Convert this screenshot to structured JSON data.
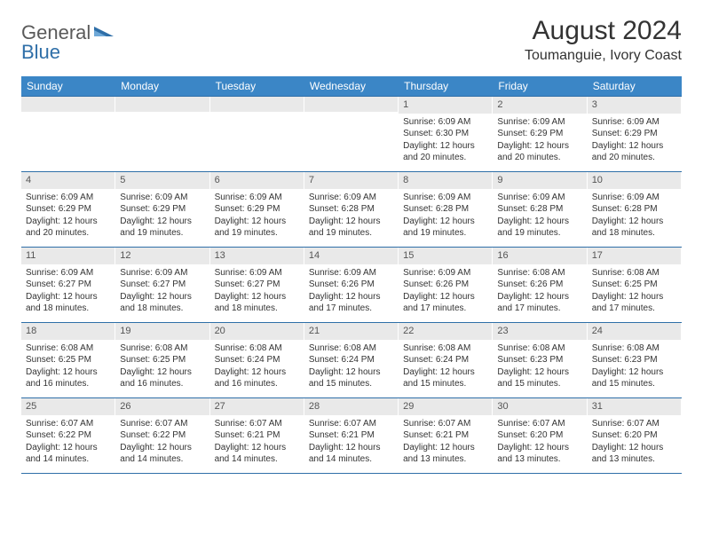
{
  "brand": {
    "part1": "General",
    "part2": "Blue"
  },
  "title": "August 2024",
  "location": "Toumanguie, Ivory Coast",
  "colors": {
    "header_bg": "#3b86c6",
    "divider": "#2f6fa8",
    "daynum_bg": "#e9e9e9",
    "text": "#333333",
    "logo_gray": "#5a5a5a",
    "logo_blue": "#2f6fa8",
    "background": "#ffffff"
  },
  "weekdays": [
    "Sunday",
    "Monday",
    "Tuesday",
    "Wednesday",
    "Thursday",
    "Friday",
    "Saturday"
  ],
  "weeks": [
    [
      {
        "day": "",
        "sunrise": "",
        "sunset": "",
        "daylight1": "",
        "daylight2": ""
      },
      {
        "day": "",
        "sunrise": "",
        "sunset": "",
        "daylight1": "",
        "daylight2": ""
      },
      {
        "day": "",
        "sunrise": "",
        "sunset": "",
        "daylight1": "",
        "daylight2": ""
      },
      {
        "day": "",
        "sunrise": "",
        "sunset": "",
        "daylight1": "",
        "daylight2": ""
      },
      {
        "day": "1",
        "sunrise": "Sunrise: 6:09 AM",
        "sunset": "Sunset: 6:30 PM",
        "daylight1": "Daylight: 12 hours",
        "daylight2": "and 20 minutes."
      },
      {
        "day": "2",
        "sunrise": "Sunrise: 6:09 AM",
        "sunset": "Sunset: 6:29 PM",
        "daylight1": "Daylight: 12 hours",
        "daylight2": "and 20 minutes."
      },
      {
        "day": "3",
        "sunrise": "Sunrise: 6:09 AM",
        "sunset": "Sunset: 6:29 PM",
        "daylight1": "Daylight: 12 hours",
        "daylight2": "and 20 minutes."
      }
    ],
    [
      {
        "day": "4",
        "sunrise": "Sunrise: 6:09 AM",
        "sunset": "Sunset: 6:29 PM",
        "daylight1": "Daylight: 12 hours",
        "daylight2": "and 20 minutes."
      },
      {
        "day": "5",
        "sunrise": "Sunrise: 6:09 AM",
        "sunset": "Sunset: 6:29 PM",
        "daylight1": "Daylight: 12 hours",
        "daylight2": "and 19 minutes."
      },
      {
        "day": "6",
        "sunrise": "Sunrise: 6:09 AM",
        "sunset": "Sunset: 6:29 PM",
        "daylight1": "Daylight: 12 hours",
        "daylight2": "and 19 minutes."
      },
      {
        "day": "7",
        "sunrise": "Sunrise: 6:09 AM",
        "sunset": "Sunset: 6:28 PM",
        "daylight1": "Daylight: 12 hours",
        "daylight2": "and 19 minutes."
      },
      {
        "day": "8",
        "sunrise": "Sunrise: 6:09 AM",
        "sunset": "Sunset: 6:28 PM",
        "daylight1": "Daylight: 12 hours",
        "daylight2": "and 19 minutes."
      },
      {
        "day": "9",
        "sunrise": "Sunrise: 6:09 AM",
        "sunset": "Sunset: 6:28 PM",
        "daylight1": "Daylight: 12 hours",
        "daylight2": "and 19 minutes."
      },
      {
        "day": "10",
        "sunrise": "Sunrise: 6:09 AM",
        "sunset": "Sunset: 6:28 PM",
        "daylight1": "Daylight: 12 hours",
        "daylight2": "and 18 minutes."
      }
    ],
    [
      {
        "day": "11",
        "sunrise": "Sunrise: 6:09 AM",
        "sunset": "Sunset: 6:27 PM",
        "daylight1": "Daylight: 12 hours",
        "daylight2": "and 18 minutes."
      },
      {
        "day": "12",
        "sunrise": "Sunrise: 6:09 AM",
        "sunset": "Sunset: 6:27 PM",
        "daylight1": "Daylight: 12 hours",
        "daylight2": "and 18 minutes."
      },
      {
        "day": "13",
        "sunrise": "Sunrise: 6:09 AM",
        "sunset": "Sunset: 6:27 PM",
        "daylight1": "Daylight: 12 hours",
        "daylight2": "and 18 minutes."
      },
      {
        "day": "14",
        "sunrise": "Sunrise: 6:09 AM",
        "sunset": "Sunset: 6:26 PM",
        "daylight1": "Daylight: 12 hours",
        "daylight2": "and 17 minutes."
      },
      {
        "day": "15",
        "sunrise": "Sunrise: 6:09 AM",
        "sunset": "Sunset: 6:26 PM",
        "daylight1": "Daylight: 12 hours",
        "daylight2": "and 17 minutes."
      },
      {
        "day": "16",
        "sunrise": "Sunrise: 6:08 AM",
        "sunset": "Sunset: 6:26 PM",
        "daylight1": "Daylight: 12 hours",
        "daylight2": "and 17 minutes."
      },
      {
        "day": "17",
        "sunrise": "Sunrise: 6:08 AM",
        "sunset": "Sunset: 6:25 PM",
        "daylight1": "Daylight: 12 hours",
        "daylight2": "and 17 minutes."
      }
    ],
    [
      {
        "day": "18",
        "sunrise": "Sunrise: 6:08 AM",
        "sunset": "Sunset: 6:25 PM",
        "daylight1": "Daylight: 12 hours",
        "daylight2": "and 16 minutes."
      },
      {
        "day": "19",
        "sunrise": "Sunrise: 6:08 AM",
        "sunset": "Sunset: 6:25 PM",
        "daylight1": "Daylight: 12 hours",
        "daylight2": "and 16 minutes."
      },
      {
        "day": "20",
        "sunrise": "Sunrise: 6:08 AM",
        "sunset": "Sunset: 6:24 PM",
        "daylight1": "Daylight: 12 hours",
        "daylight2": "and 16 minutes."
      },
      {
        "day": "21",
        "sunrise": "Sunrise: 6:08 AM",
        "sunset": "Sunset: 6:24 PM",
        "daylight1": "Daylight: 12 hours",
        "daylight2": "and 15 minutes."
      },
      {
        "day": "22",
        "sunrise": "Sunrise: 6:08 AM",
        "sunset": "Sunset: 6:24 PM",
        "daylight1": "Daylight: 12 hours",
        "daylight2": "and 15 minutes."
      },
      {
        "day": "23",
        "sunrise": "Sunrise: 6:08 AM",
        "sunset": "Sunset: 6:23 PM",
        "daylight1": "Daylight: 12 hours",
        "daylight2": "and 15 minutes."
      },
      {
        "day": "24",
        "sunrise": "Sunrise: 6:08 AM",
        "sunset": "Sunset: 6:23 PM",
        "daylight1": "Daylight: 12 hours",
        "daylight2": "and 15 minutes."
      }
    ],
    [
      {
        "day": "25",
        "sunrise": "Sunrise: 6:07 AM",
        "sunset": "Sunset: 6:22 PM",
        "daylight1": "Daylight: 12 hours",
        "daylight2": "and 14 minutes."
      },
      {
        "day": "26",
        "sunrise": "Sunrise: 6:07 AM",
        "sunset": "Sunset: 6:22 PM",
        "daylight1": "Daylight: 12 hours",
        "daylight2": "and 14 minutes."
      },
      {
        "day": "27",
        "sunrise": "Sunrise: 6:07 AM",
        "sunset": "Sunset: 6:21 PM",
        "daylight1": "Daylight: 12 hours",
        "daylight2": "and 14 minutes."
      },
      {
        "day": "28",
        "sunrise": "Sunrise: 6:07 AM",
        "sunset": "Sunset: 6:21 PM",
        "daylight1": "Daylight: 12 hours",
        "daylight2": "and 14 minutes."
      },
      {
        "day": "29",
        "sunrise": "Sunrise: 6:07 AM",
        "sunset": "Sunset: 6:21 PM",
        "daylight1": "Daylight: 12 hours",
        "daylight2": "and 13 minutes."
      },
      {
        "day": "30",
        "sunrise": "Sunrise: 6:07 AM",
        "sunset": "Sunset: 6:20 PM",
        "daylight1": "Daylight: 12 hours",
        "daylight2": "and 13 minutes."
      },
      {
        "day": "31",
        "sunrise": "Sunrise: 6:07 AM",
        "sunset": "Sunset: 6:20 PM",
        "daylight1": "Daylight: 12 hours",
        "daylight2": "and 13 minutes."
      }
    ]
  ]
}
